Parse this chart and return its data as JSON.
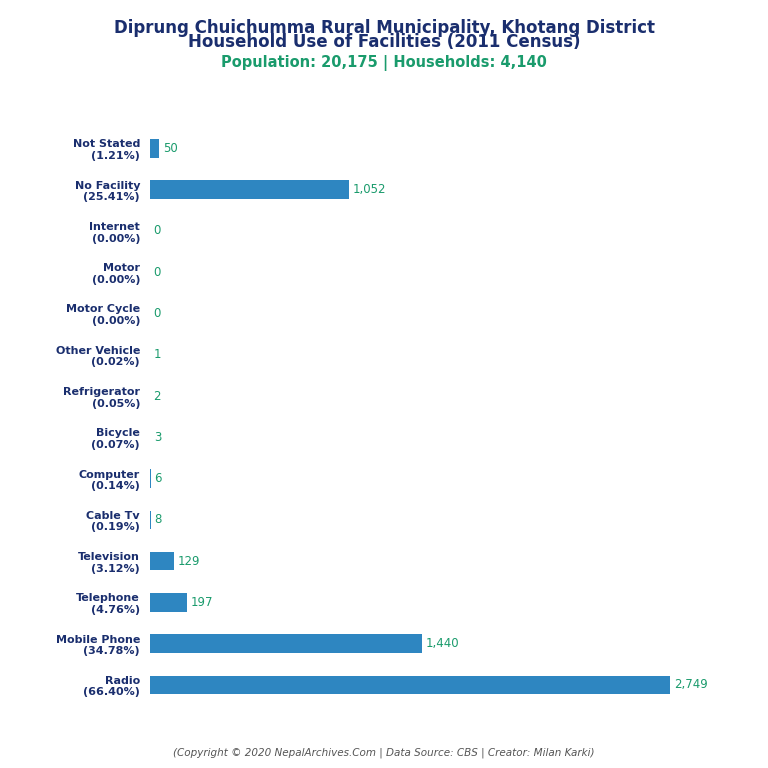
{
  "title_line1": "Diprung Chuichumma Rural Municipality, Khotang District",
  "title_line2": "Household Use of Facilities (2011 Census)",
  "subtitle": "Population: 20,175 | Households: 4,140",
  "footer": "(Copyright © 2020 NepalArchives.Com | Data Source: CBS | Creator: Milan Karki)",
  "categories": [
    "Not Stated\n(1.21%)",
    "No Facility\n(25.41%)",
    "Internet\n(0.00%)",
    "Motor\n(0.00%)",
    "Motor Cycle\n(0.00%)",
    "Other Vehicle\n(0.02%)",
    "Refrigerator\n(0.05%)",
    "Bicycle\n(0.07%)",
    "Computer\n(0.14%)",
    "Cable Tv\n(0.19%)",
    "Television\n(3.12%)",
    "Telephone\n(4.76%)",
    "Mobile Phone\n(34.78%)",
    "Radio\n(66.40%)"
  ],
  "values": [
    50,
    1052,
    0,
    0,
    0,
    1,
    2,
    3,
    6,
    8,
    129,
    197,
    1440,
    2749
  ],
  "bar_color": "#2e86c1",
  "label_color": "#1a9b6c",
  "title_color": "#1a2e6e",
  "subtitle_color": "#1a9b6c",
  "footer_color": "#555555",
  "background_color": "#ffffff",
  "xlim": [
    0,
    2900
  ],
  "bar_height": 0.45
}
